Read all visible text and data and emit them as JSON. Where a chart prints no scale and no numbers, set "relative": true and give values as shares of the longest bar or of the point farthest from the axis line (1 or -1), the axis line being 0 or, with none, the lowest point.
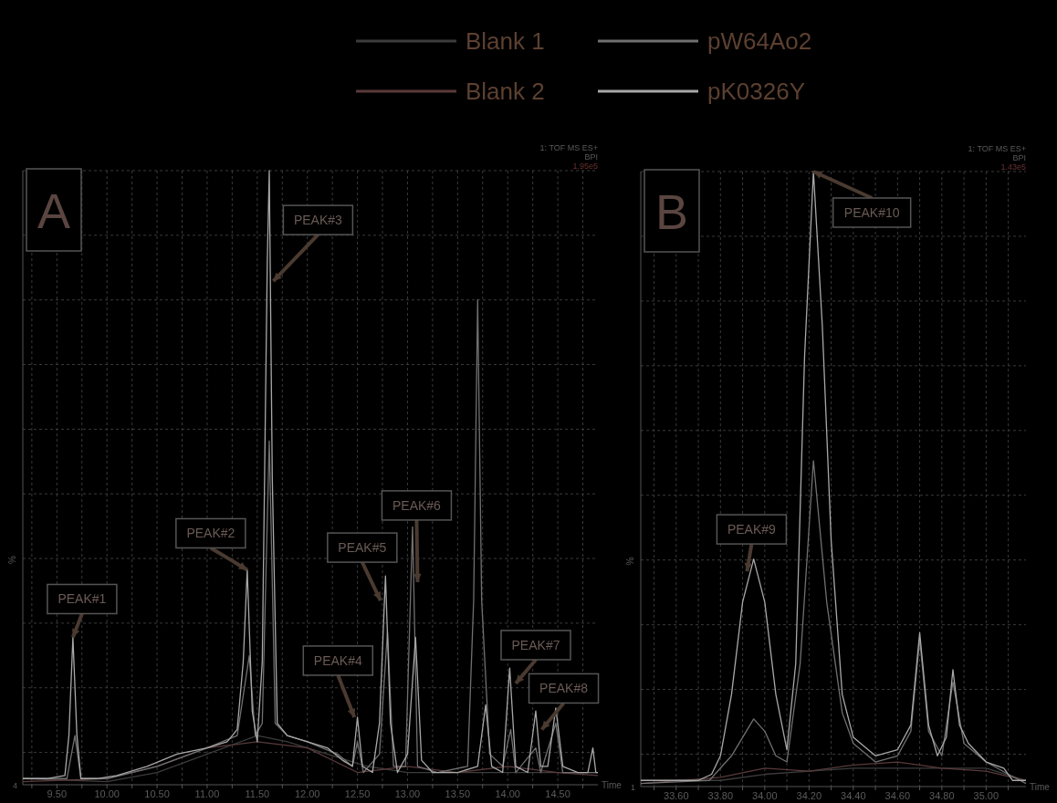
{
  "chart_data": [
    {
      "type": "line",
      "relative": true,
      "ylabel": "%",
      "xlabel": "Time",
      "legend": "top",
      "grid": true,
      "marker": "none",
      "line_style": "solid",
      "tick_labels": "x",
      "xlim": [
        9.16,
        14.9
      ],
      "xticks": [
        {
          "value": 9.25,
          "label": null
        },
        {
          "value": 9.5,
          "label": "9.50"
        },
        {
          "value": 9.75,
          "label": null
        },
        {
          "value": 10,
          "label": "10.00"
        },
        {
          "value": 10.25,
          "label": null
        },
        {
          "value": 10.5,
          "label": "10.50"
        },
        {
          "value": 10.75,
          "label": null
        },
        {
          "value": 11,
          "label": "11.00"
        },
        {
          "value": 11.25,
          "label": null
        },
        {
          "value": 11.5,
          "label": "11.50"
        },
        {
          "value": 11.75,
          "label": null
        },
        {
          "value": 12,
          "label": "12.00"
        },
        {
          "value": 12.25,
          "label": null
        },
        {
          "value": 12.5,
          "label": "12.50"
        },
        {
          "value": 12.75,
          "label": null
        },
        {
          "value": 13,
          "label": "13.00"
        },
        {
          "value": 13.25,
          "label": null
        },
        {
          "value": 13.5,
          "label": "13.50"
        },
        {
          "value": 13.75,
          "label": null
        },
        {
          "value": 14,
          "label": "14.00"
        },
        {
          "value": 14.25,
          "label": null
        },
        {
          "value": 14.5,
          "label": "14.50"
        },
        {
          "value": 14.75,
          "label": null
        }
      ],
      "series": [
        {
          "name": "Blank 1",
          "color": "#3c3c3c",
          "x": [
            9.16,
            10.0,
            10.5,
            11.0,
            11.5,
            11.8,
            12.2,
            12.6,
            13.0,
            13.5,
            14.0,
            14.5,
            14.9
          ],
          "values": [
            0.01,
            0.005,
            0.02,
            0.05,
            0.08,
            0.07,
            0.05,
            0.03,
            0.02,
            0.02,
            0.02,
            0.02,
            0.02
          ]
        },
        {
          "name": "Blank 2",
          "color": "#5a3a3a",
          "x": [
            9.16,
            10.0,
            10.5,
            11.0,
            11.5,
            12.0,
            12.5,
            13.0,
            13.5,
            14.0,
            14.5,
            14.9
          ],
          "values": [
            0.005,
            0.01,
            0.03,
            0.06,
            0.07,
            0.06,
            0.02,
            0.03,
            0.02,
            0.03,
            0.02,
            0.015
          ]
        },
        {
          "name": "pW64Ao2",
          "color": "#707070",
          "x": [
            9.16,
            9.6,
            9.68,
            9.74,
            10.0,
            10.5,
            11.0,
            11.3,
            11.42,
            11.48,
            11.55,
            11.62,
            11.68,
            11.8,
            12.0,
            12.3,
            12.45,
            12.5,
            12.56,
            12.72,
            12.8,
            12.86,
            12.98,
            13.05,
            13.1,
            13.3,
            13.6,
            13.66,
            13.7,
            13.74,
            13.82,
            13.95,
            14.03,
            14.08,
            14.28,
            14.33,
            14.48,
            14.55,
            14.9
          ],
          "values": [
            0.01,
            0.01,
            0.08,
            0.01,
            0.01,
            0.03,
            0.06,
            0.08,
            0.21,
            0.08,
            0.1,
            0.56,
            0.1,
            0.08,
            0.07,
            0.05,
            0.03,
            0.07,
            0.02,
            0.05,
            0.25,
            0.03,
            0.03,
            0.42,
            0.03,
            0.02,
            0.03,
            0.3,
            0.79,
            0.3,
            0.05,
            0.03,
            0.09,
            0.02,
            0.06,
            0.02,
            0.1,
            0.02,
            0.02
          ]
        },
        {
          "name": "pK0326Y",
          "color": "#a8a8a8",
          "x": [
            9.16,
            9.4,
            9.58,
            9.62,
            9.66,
            9.7,
            9.74,
            9.9,
            10.1,
            10.4,
            10.7,
            11.0,
            11.2,
            11.3,
            11.36,
            11.4,
            11.45,
            11.5,
            11.55,
            11.6,
            11.62,
            11.65,
            11.7,
            11.8,
            12.0,
            12.2,
            12.35,
            12.45,
            12.5,
            12.55,
            12.65,
            12.72,
            12.78,
            12.83,
            12.9,
            13.0,
            13.08,
            13.14,
            13.25,
            13.5,
            13.7,
            13.78,
            13.84,
            13.95,
            14.02,
            14.08,
            14.2,
            14.28,
            14.33,
            14.4,
            14.48,
            14.55,
            14.7,
            14.8,
            14.85,
            14.88,
            14.9
          ],
          "values": [
            0.01,
            0.01,
            0.015,
            0.08,
            0.24,
            0.08,
            0.01,
            0.01,
            0.015,
            0.03,
            0.05,
            0.06,
            0.07,
            0.09,
            0.2,
            0.35,
            0.12,
            0.07,
            0.2,
            0.85,
            1.0,
            0.5,
            0.1,
            0.08,
            0.07,
            0.06,
            0.04,
            0.03,
            0.11,
            0.03,
            0.02,
            0.1,
            0.34,
            0.1,
            0.02,
            0.05,
            0.24,
            0.04,
            0.02,
            0.02,
            0.03,
            0.13,
            0.03,
            0.02,
            0.19,
            0.03,
            0.02,
            0.12,
            0.03,
            0.03,
            0.125,
            0.03,
            0.02,
            0.02,
            0.06,
            0.02,
            0.02
          ]
        }
      ],
      "annotations": [
        {
          "text": "PEAK#1",
          "x": 9.66,
          "y": 0.24
        },
        {
          "text": "PEAK#2",
          "x": 11.4,
          "y": 0.35
        },
        {
          "text": "PEAK#3",
          "x": 11.66,
          "y": 0.82
        },
        {
          "text": "PEAK#4",
          "x": 12.47,
          "y": 0.11
        },
        {
          "text": "PEAK#5",
          "x": 12.73,
          "y": 0.3
        },
        {
          "text": "PEAK#6",
          "x": 13.1,
          "y": 0.33
        },
        {
          "text": "PEAK#7",
          "x": 14.08,
          "y": 0.165
        },
        {
          "text": "PEAK#8",
          "x": 14.34,
          "y": 0.09
        },
        "A",
        "1: TOF MS ES+",
        "BPI",
        "1.95e5",
        "4"
      ]
    },
    {
      "type": "line",
      "relative": true,
      "ylabel": "%",
      "xlabel": "Time",
      "grid": true,
      "marker": "none",
      "line_style": "solid",
      "tick_labels": "x",
      "xlim": [
        33.44,
        35.18
      ],
      "xticks": [
        {
          "value": 33.5,
          "label": null
        },
        {
          "value": 33.6,
          "label": "33.60"
        },
        {
          "value": 33.7,
          "label": null
        },
        {
          "value": 33.8,
          "label": "33.80"
        },
        {
          "value": 33.9,
          "label": null
        },
        {
          "value": 34.0,
          "label": "34.00"
        },
        {
          "value": 34.1,
          "label": null
        },
        {
          "value": 34.2,
          "label": "34.20"
        },
        {
          "value": 34.3,
          "label": null
        },
        {
          "value": 34.4,
          "label": "34.40"
        },
        {
          "value": 34.5,
          "label": null
        },
        {
          "value": 34.6,
          "label": "34.60"
        },
        {
          "value": 34.7,
          "label": null
        },
        {
          "value": 34.8,
          "label": "34.80"
        },
        {
          "value": 34.9,
          "label": null
        },
        {
          "value": 35.0,
          "label": "35.00"
        },
        {
          "value": 35.1,
          "label": null
        }
      ],
      "series": [
        {
          "color": "#3c3c3c",
          "x": [
            33.44,
            33.8,
            34.0,
            34.2,
            34.4,
            34.6,
            34.8,
            35.0,
            35.18
          ],
          "values": [
            0.01,
            0.01,
            0.02,
            0.025,
            0.03,
            0.03,
            0.03,
            0.03,
            0.01
          ]
        },
        {
          "color": "#5a3a3a",
          "x": [
            33.44,
            33.8,
            34.0,
            34.2,
            34.4,
            34.6,
            34.8,
            35.0,
            35.18
          ],
          "values": [
            0.005,
            0.015,
            0.03,
            0.025,
            0.035,
            0.04,
            0.03,
            0.025,
            0.01
          ]
        },
        {
          "color": "#707070",
          "x": [
            33.44,
            33.75,
            33.85,
            33.95,
            34.0,
            34.05,
            34.1,
            34.16,
            34.22,
            34.28,
            34.35,
            34.4,
            34.5,
            34.6,
            34.66,
            34.7,
            34.74,
            34.8,
            34.85,
            34.9,
            35.0,
            35.1,
            35.18
          ],
          "values": [
            0.005,
            0.01,
            0.05,
            0.11,
            0.09,
            0.05,
            0.04,
            0.2,
            0.53,
            0.3,
            0.12,
            0.07,
            0.04,
            0.05,
            0.09,
            0.24,
            0.09,
            0.05,
            0.17,
            0.07,
            0.04,
            0.02,
            0.005
          ]
        },
        {
          "color": "#a8a8a8",
          "x": [
            33.44,
            33.7,
            33.76,
            33.8,
            33.85,
            33.9,
            33.95,
            34.0,
            34.05,
            34.1,
            34.14,
            34.18,
            34.22,
            34.26,
            34.3,
            34.35,
            34.4,
            34.5,
            34.6,
            34.66,
            34.7,
            34.74,
            34.78,
            34.82,
            34.85,
            34.88,
            34.92,
            35.0,
            35.08,
            35.12,
            35.18
          ],
          "values": [
            0.01,
            0.01,
            0.02,
            0.05,
            0.15,
            0.3,
            0.37,
            0.3,
            0.15,
            0.06,
            0.2,
            0.7,
            1.0,
            0.75,
            0.4,
            0.15,
            0.08,
            0.05,
            0.06,
            0.1,
            0.25,
            0.1,
            0.05,
            0.08,
            0.19,
            0.1,
            0.07,
            0.04,
            0.03,
            0.01,
            0.01
          ]
        }
      ],
      "annotations": [
        {
          "text": "PEAK#9",
          "x": 33.92,
          "y": 0.35
        },
        {
          "text": "PEAK#10",
          "x": 34.22,
          "y": 1.0
        },
        "B",
        "1: TOF MS ES+",
        "BPI",
        "1.43e5",
        "1"
      ]
    }
  ]
}
